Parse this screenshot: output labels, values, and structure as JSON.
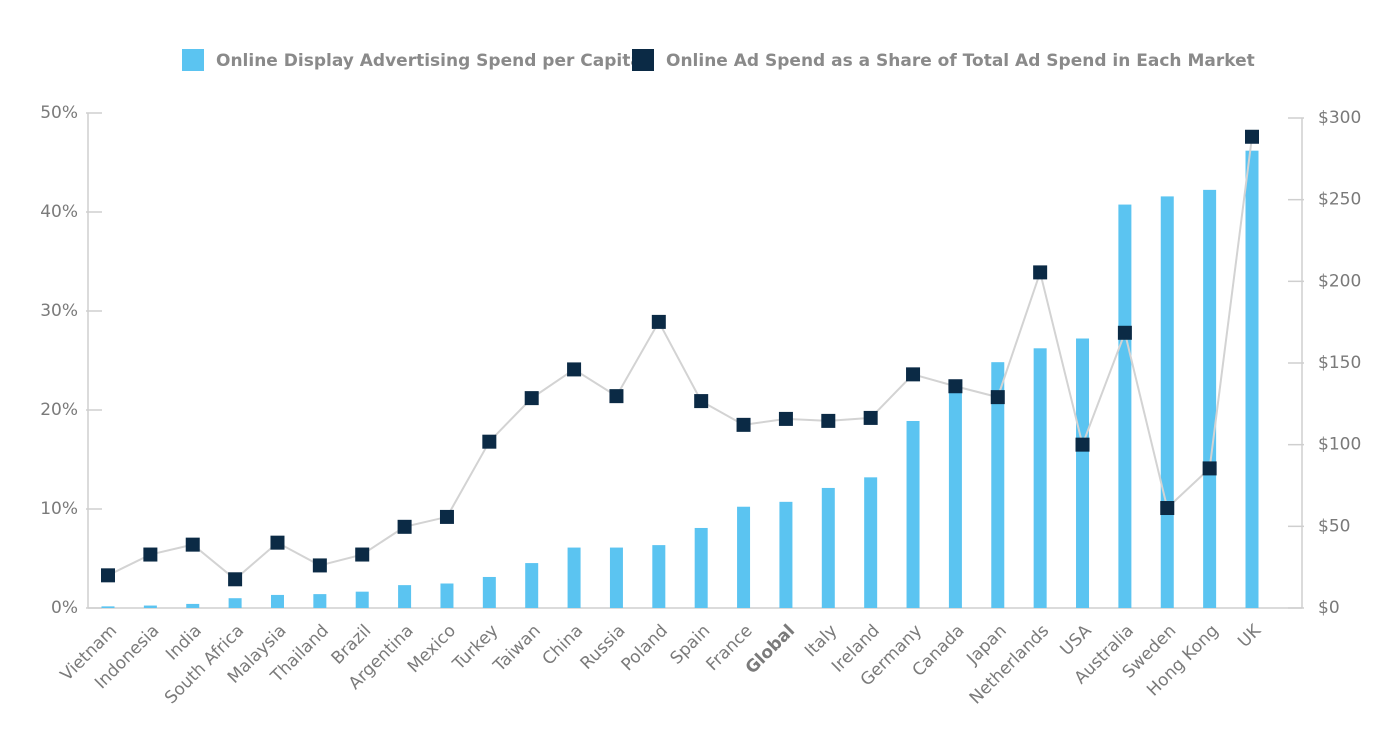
{
  "chart_data": {
    "type": "bar-line",
    "categories": [
      "Vietnam",
      "Indonesia",
      "India",
      "South Africa",
      "Malaysia",
      "Thailand",
      "Brazil",
      "Argentina",
      "Mexico",
      "Turkey",
      "Taiwan",
      "China",
      "Russia",
      "Poland",
      "Spain",
      "France",
      "Global",
      "Italy",
      "Ireland",
      "Germany",
      "Canada",
      "Japan",
      "Netherlands",
      "USA",
      "Australia",
      "Sweden",
      "Hong Kong",
      "UK"
    ],
    "bold_categories": [
      "Global"
    ],
    "series": [
      {
        "name": "Online Display Advertising Spend per Capita",
        "type": "bar",
        "axis": "y2",
        "color": "#5bc4f1",
        "values": [
          1,
          1.5,
          2.5,
          6,
          8,
          8.5,
          10,
          14,
          15,
          19,
          27.5,
          37,
          37,
          38.5,
          49,
          62,
          65,
          73.5,
          80,
          114.5,
          132,
          150.5,
          159,
          165,
          247,
          252,
          256,
          280
        ]
      },
      {
        "name": "Online Ad Spend as a Share of Total Ad Spend in Each Market",
        "type": "line",
        "axis": "y",
        "color": "#0b2a45",
        "line_color": "#d3d3d3",
        "values": [
          3.3,
          5.4,
          6.4,
          2.9,
          6.6,
          4.3,
          5.4,
          8.2,
          9.2,
          16.8,
          21.2,
          24.1,
          21.4,
          28.9,
          20.9,
          18.5,
          19.1,
          18.9,
          19.2,
          23.6,
          22.4,
          21.3,
          33.9,
          16.5,
          27.8,
          10.1,
          14.1,
          47.6
        ]
      }
    ],
    "ylim": [
      0,
      50
    ],
    "yticks": [
      {
        "value": 0,
        "label": "0%"
      },
      {
        "value": 10,
        "label": "10%"
      },
      {
        "value": 20,
        "label": "20%"
      },
      {
        "value": 30,
        "label": "30%"
      },
      {
        "value": 40,
        "label": "40%"
      },
      {
        "value": 50,
        "label": "50%"
      }
    ],
    "y2lim": [
      0,
      300
    ],
    "y2ticks": [
      {
        "value": 0,
        "label": "$0"
      },
      {
        "value": 50,
        "label": "$50"
      },
      {
        "value": 100,
        "label": "$100"
      },
      {
        "value": 150,
        "label": "$150"
      },
      {
        "value": 200,
        "label": "$200"
      },
      {
        "value": 250,
        "label": "$250"
      },
      {
        "value": 300,
        "label": "$300"
      }
    ],
    "legend": "top"
  }
}
